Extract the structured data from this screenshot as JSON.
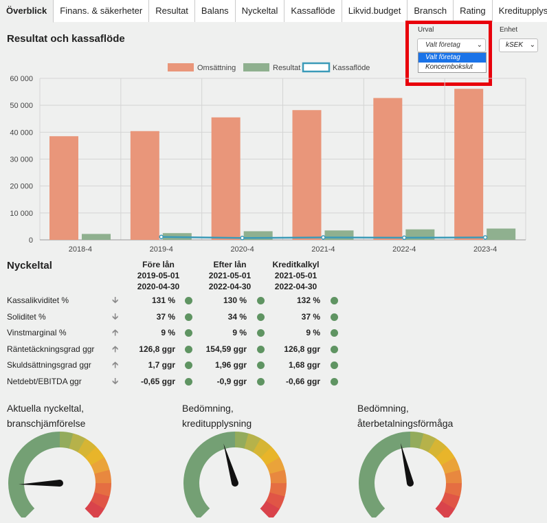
{
  "tabs": [
    "Överblick",
    "Finans. & säkerheter",
    "Resultat",
    "Balans",
    "Nyckeltal",
    "Kassaflöde",
    "Likvid.budget",
    "Bransch",
    "Rating",
    "Kreditupplysning"
  ],
  "active_tab": "Överblick",
  "section_title": "Resultat och kassaflöde",
  "urval": {
    "label": "Urval",
    "value": "Valt företag",
    "options": [
      "Valt företag",
      "Koncernbokslut"
    ]
  },
  "enhet": {
    "label": "Enhet",
    "value": "kSEK"
  },
  "chart_data": {
    "type": "bar",
    "categories": [
      "2018-4",
      "2019-4",
      "2020-4",
      "2021-4",
      "2022-4",
      "2023-4"
    ],
    "series": [
      {
        "name": "Omsättning",
        "type": "bar",
        "color": "#e9967a",
        "values": [
          38500,
          40400,
          45500,
          48200,
          52700,
          56100
        ]
      },
      {
        "name": "Resultat",
        "type": "bar",
        "color": "#8fb08f",
        "values": [
          2200,
          2500,
          3200,
          3500,
          3900,
          4200
        ]
      },
      {
        "name": "Kassaflöde",
        "type": "line",
        "color": "#3a9ab8",
        "values": [
          null,
          1100,
          700,
          900,
          800,
          900
        ]
      }
    ],
    "ylim": [
      0,
      60000
    ],
    "yticks": [
      "0",
      "10 000",
      "20 000",
      "30 000",
      "40 000",
      "50 000",
      "60 000"
    ],
    "legend": "top-center",
    "grid": true
  },
  "nyckeltal": {
    "title": "Nyckeltal",
    "columns": [
      {
        "title": "Före lån",
        "from": "2019-05-01",
        "to": "2020-04-30"
      },
      {
        "title": "Efter lån",
        "from": "2021-05-01",
        "to": "2022-04-30"
      },
      {
        "title": "Kreditkalkyl",
        "from": "2021-05-01",
        "to": "2022-04-30"
      }
    ],
    "rows": [
      {
        "label": "Kassalikviditet %",
        "trend": "down",
        "values": [
          "131 %",
          "130 %",
          "132 %"
        ]
      },
      {
        "label": "Soliditet %",
        "trend": "down",
        "values": [
          "37 %",
          "34 %",
          "37 %"
        ]
      },
      {
        "label": "Vinstmarginal %",
        "trend": "up",
        "values": [
          "9 %",
          "9 %",
          "9 %"
        ]
      },
      {
        "label": "Räntetäckningsgrad ggr",
        "trend": "up",
        "values": [
          "126,8 ggr",
          "154,59 ggr",
          "126,8 ggr"
        ]
      },
      {
        "label": "Skuldsättningsgrad ggr",
        "trend": "up",
        "values": [
          "1,7 ggr",
          "1,96 ggr",
          "1,68 ggr"
        ]
      },
      {
        "label": "Netdebt/EBITDA ggr",
        "trend": "down",
        "values": [
          "-0,65 ggr",
          "-0,9 ggr",
          "-0,66 ggr"
        ]
      }
    ],
    "status_color": "#5f9462"
  },
  "gauges": [
    {
      "title_line1": "Aktuella nyckeltal,",
      "title_line2": "branschjämförelse",
      "level": 0.16
    },
    {
      "title_line1": "Bedömning,",
      "title_line2": "kreditupplysning",
      "level": 0.44
    },
    {
      "title_line1": "Bedömning,",
      "title_line2": "återbetalningsförmåga",
      "level": 0.45
    }
  ]
}
